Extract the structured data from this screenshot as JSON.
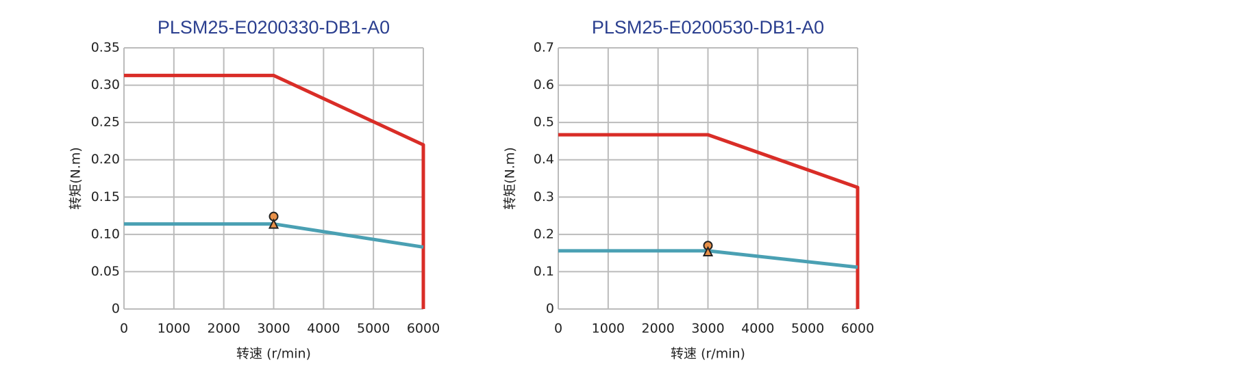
{
  "chart_data": [
    {
      "type": "line",
      "title": "PLSM25-E0200330-DB1-A0",
      "x_label": "转速 (r/min)",
      "y_label": "转矩(N.m)",
      "xlim": [
        0,
        6000
      ],
      "xticks": [
        0,
        1000,
        2000,
        3000,
        4000,
        5000,
        6000
      ],
      "ylim": [
        0,
        0.35
      ],
      "yticks": [
        0,
        0.05,
        {
          "value": 0.1,
          "label": "0.10"
        },
        0.15,
        {
          "value": 0.2,
          "label": "0.20"
        },
        0.25,
        {
          "value": 0.3,
          "label": "0.30"
        },
        0.35
      ],
      "grid": true,
      "series": [
        {
          "color": "#d92d27",
          "x": [
            0,
            3000,
            6000,
            6000
          ],
          "values": [
            0.313,
            0.313,
            0.22,
            0
          ]
        },
        {
          "color": "#4aa0b3",
          "x": [
            0,
            3000,
            6000
          ],
          "values": [
            0.114,
            0.114,
            0.083
          ]
        },
        {
          "color": "#e8914a",
          "marker": "circle",
          "x": [
            3000
          ],
          "values": [
            0.124
          ]
        },
        {
          "color": "#e8914a",
          "marker": "triangle",
          "x": [
            3000
          ],
          "values": [
            0.113
          ]
        }
      ]
    },
    {
      "type": "line",
      "title": "PLSM25-E0200530-DB1-A0",
      "x_label": "转速 (r/min)",
      "y_label": "转矩(N.m)",
      "xlim": [
        0,
        6000
      ],
      "xticks": [
        0,
        1000,
        2000,
        3000,
        4000,
        5000,
        6000
      ],
      "ylim": [
        0,
        0.7
      ],
      "yticks": [
        0,
        0.1,
        0.2,
        0.3,
        0.4,
        0.5,
        0.6,
        0.7
      ],
      "grid": true,
      "series": [
        {
          "color": "#d92d27",
          "x": [
            0,
            3000,
            6000,
            6000
          ],
          "values": [
            0.467,
            0.467,
            0.326,
            0
          ]
        },
        {
          "color": "#4aa0b3",
          "x": [
            0,
            3000,
            6000
          ],
          "values": [
            0.156,
            0.156,
            0.112
          ]
        },
        {
          "color": "#e8914a",
          "marker": "circle",
          "x": [
            3000
          ],
          "values": [
            0.17
          ]
        },
        {
          "color": "#e8914a",
          "marker": "triangle",
          "x": [
            3000
          ],
          "values": [
            0.152
          ]
        }
      ]
    }
  ]
}
